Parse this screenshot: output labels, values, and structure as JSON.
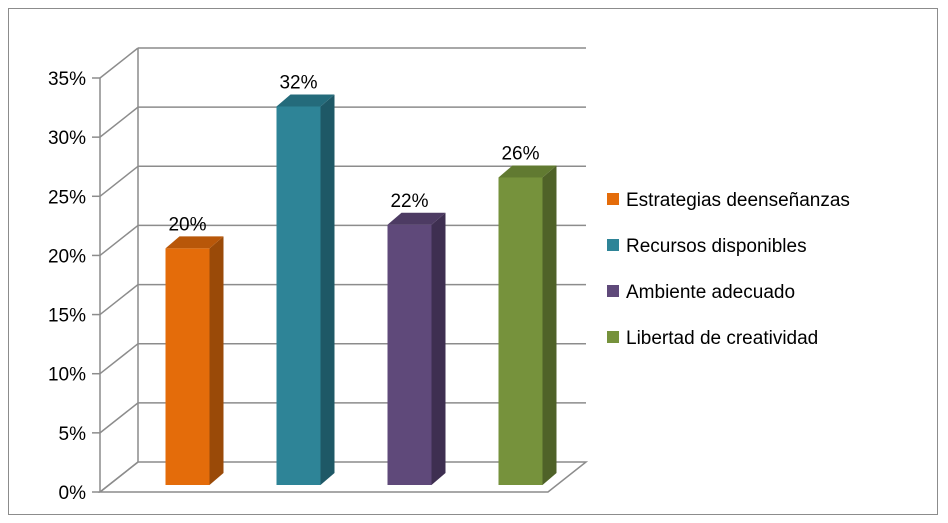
{
  "chart_data": {
    "type": "bar",
    "categories": [
      "Estrategias deenseñanzas",
      "Recursos disponibles",
      "Ambiente adecuado",
      "Libertad de creatividad"
    ],
    "values": [
      20,
      32,
      22,
      26
    ],
    "data_labels": [
      "20%",
      "32%",
      "22%",
      "26%"
    ],
    "y_ticks": [
      "0%",
      "5%",
      "10%",
      "15%",
      "20%",
      "25%",
      "30%",
      "35%"
    ],
    "ylim": [
      0,
      35
    ],
    "grid": true,
    "style": "3d-column",
    "legend_position": "right",
    "colors": [
      {
        "front": "#E46C0A",
        "side": "#9A4A08",
        "top": "#B85709"
      },
      {
        "front": "#2E8497",
        "side": "#1E5866",
        "top": "#246B7B"
      },
      {
        "front": "#5F497A",
        "side": "#3E2F51",
        "top": "#4D3B63"
      },
      {
        "front": "#76923C",
        "side": "#4F6228",
        "top": "#617A31"
      }
    ]
  }
}
